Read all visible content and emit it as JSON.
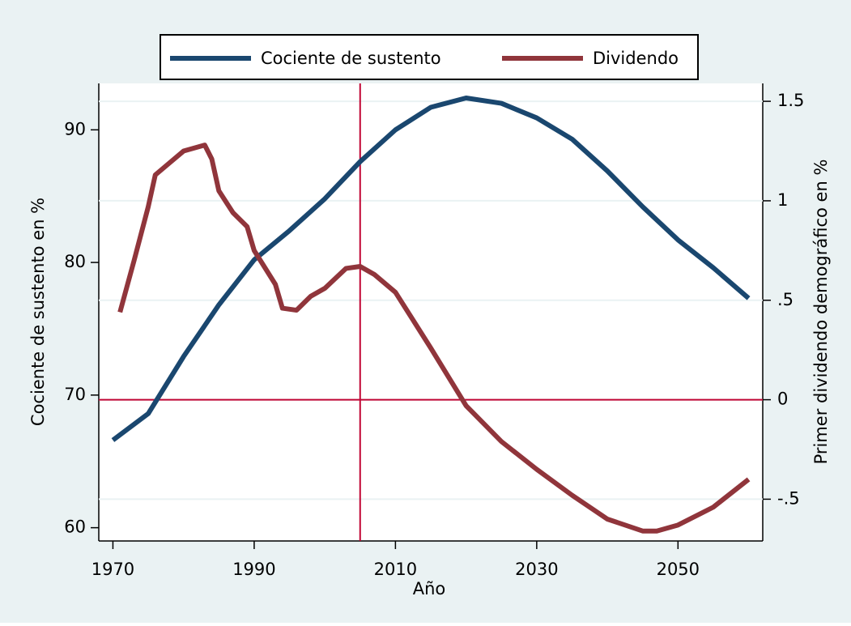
{
  "chart_data": {
    "type": "line",
    "xlabel": "Año",
    "ylabel": "Cociente de sustento en %",
    "y2label": "Primer dividendo demográfico en %",
    "xlim": [
      1968,
      2062
    ],
    "xticks": [
      1970,
      1990,
      2010,
      2030,
      2050
    ],
    "ylim": [
      59,
      93.5
    ],
    "yticks": [
      60,
      70,
      80,
      90
    ],
    "y2lim": [
      -0.71,
      1.59
    ],
    "y2ticks": [
      {
        "value": -0.5,
        "label": "-.5"
      },
      0,
      {
        "value": 0.5,
        "label": ".5"
      },
      1,
      1.5
    ],
    "grid": true,
    "xline": 2005,
    "y2line": 0,
    "refline_color": "#c10534",
    "legend": "top",
    "series": [
      {
        "name": "Cociente de sustento",
        "color": "#1a476f",
        "x": [
          1970,
          1975,
          1980,
          1985,
          1990,
          1995,
          2000,
          2005,
          2010,
          2015,
          2020,
          2025,
          2030,
          2035,
          2040,
          2045,
          2050,
          2055,
          2060
        ],
        "values": [
          66.6,
          68.6,
          72.9,
          76.8,
          80.2,
          82.4,
          84.8,
          87.6,
          90.0,
          91.7,
          92.4,
          92.0,
          90.9,
          89.3,
          86.9,
          84.2,
          81.7,
          79.6,
          77.3
        ]
      },
      {
        "name": "Dividendo",
        "color": "#90353b",
        "axis": "y2",
        "x": [
          1971,
          1973,
          1975,
          1976,
          1978,
          1980,
          1983,
          1984,
          1985,
          1987,
          1989,
          1990,
          1993,
          1994,
          1996,
          1998,
          2000,
          2003,
          2005,
          2007,
          2010,
          2015,
          2020,
          2025,
          2030,
          2035,
          2040,
          2045,
          2047,
          2050,
          2055,
          2060
        ],
        "values": [
          0.44,
          0.7,
          0.97,
          1.13,
          1.19,
          1.25,
          1.28,
          1.21,
          1.05,
          0.94,
          0.87,
          0.75,
          0.58,
          0.46,
          0.45,
          0.52,
          0.56,
          0.66,
          0.67,
          0.63,
          0.54,
          0.26,
          -0.03,
          -0.21,
          -0.35,
          -0.48,
          -0.6,
          -0.66,
          -0.66,
          -0.63,
          -0.54,
          -0.4
        ]
      }
    ]
  }
}
